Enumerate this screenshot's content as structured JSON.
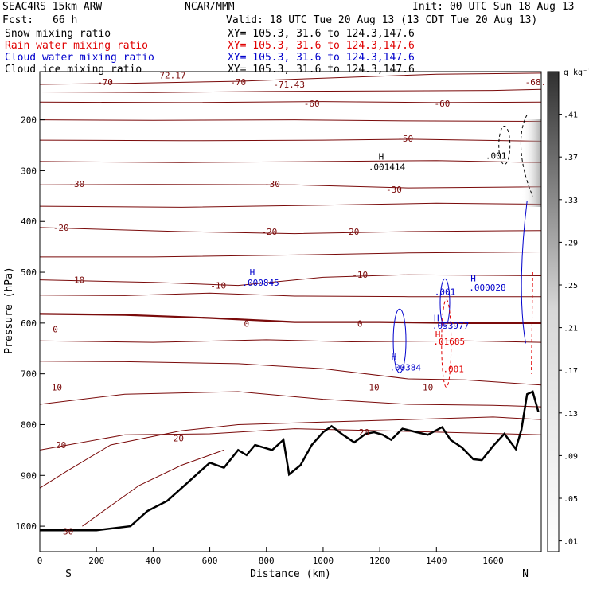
{
  "header": {
    "model": "SEAC4RS 15km ARW",
    "org": "NCAR/MMM",
    "init": "Init: 00 UTC Sun 18 Aug 13",
    "fcst_label": "Fcst:",
    "fcst_value": "66 h",
    "valid": "Valid: 18 UTC Tue 20 Aug 13 (13 CDT Tue 20 Aug 13)"
  },
  "fields": [
    {
      "name": "Snow mixing ratio",
      "xy": "XY= 105.3, 31.6 to 124.3,147.6",
      "color": "#000000"
    },
    {
      "name": "Rain water mixing ratio",
      "xy": "XY= 105.3, 31.6 to 124.3,147.6",
      "color": "#e00000"
    },
    {
      "name": "Cloud water mixing ratio",
      "xy": "XY= 105.3, 31.6 to 124.3,147.6",
      "color": "#0000cc"
    },
    {
      "name": "Cloud ice mixing ratio",
      "xy": "XY= 105.3, 31.6 to 124.3,147.6",
      "color": "#000000"
    }
  ],
  "chart_data": {
    "type": "cross-section",
    "xlabel": "Distance (km)",
    "ylabel": "Pressure (hPa)",
    "xlim": [
      0,
      1770
    ],
    "ylim": [
      1050,
      105
    ],
    "x_ticks": [
      "0",
      "200",
      "400",
      "600",
      "800",
      "1000",
      "1200",
      "1400",
      "1600"
    ],
    "x_tick_values": [
      0,
      200,
      400,
      600,
      800,
      1000,
      1200,
      1400,
      1600
    ],
    "y_ticks": [
      "200",
      "300",
      "400",
      "500",
      "600",
      "700",
      "800",
      "900",
      "1000"
    ],
    "y_tick_values": [
      200,
      300,
      400,
      500,
      600,
      700,
      800,
      900,
      1000
    ],
    "endpoint_left": "S",
    "endpoint_right": "N",
    "colorbar": {
      "unit": "g kg⁻¹",
      "labels": [
        ".01",
        ".05",
        ".09",
        ".13",
        ".17",
        ".21",
        ".25",
        ".29",
        ".33",
        ".37",
        ".41"
      ],
      "values": [
        0.01,
        0.05,
        0.09,
        0.13,
        0.17,
        0.21,
        0.25,
        0.29,
        0.33,
        0.37,
        0.41
      ]
    },
    "temperature_contours_color": "#7a0a0a",
    "terrain_color": "#000000",
    "temperature_labels": [
      {
        "text": "-70",
        "x": 230,
        "p": 125
      },
      {
        "text": "-70",
        "x": 700,
        "p": 125
      },
      {
        "text": "-72.17",
        "x": 460,
        "p": 112
      },
      {
        "text": "-71.43",
        "x": 880,
        "p": 130
      },
      {
        "text": "-68.",
        "x": 1750,
        "p": 125
      },
      {
        "text": "-60",
        "x": 960,
        "p": 168
      },
      {
        "text": "-60",
        "x": 1420,
        "p": 168
      },
      {
        "text": "-50",
        "x": 1290,
        "p": 237
      },
      {
        "text": "-30",
        "x": 130,
        "p": 326
      },
      {
        "text": "-30",
        "x": 820,
        "p": 326
      },
      {
        "text": "-30",
        "x": 1250,
        "p": 337
      },
      {
        "text": "-20",
        "x": 75,
        "p": 412
      },
      {
        "text": "-20",
        "x": 810,
        "p": 420
      },
      {
        "text": "-20",
        "x": 1100,
        "p": 420
      },
      {
        "text": "-10",
        "x": 130,
        "p": 515
      },
      {
        "text": "-10",
        "x": 630,
        "p": 526
      },
      {
        "text": "-10",
        "x": 1130,
        "p": 505
      },
      {
        "text": "0",
        "x": 55,
        "p": 612
      },
      {
        "text": "0",
        "x": 730,
        "p": 601
      },
      {
        "text": "0",
        "x": 1130,
        "p": 601
      },
      {
        "text": "10",
        "x": 60,
        "p": 726
      },
      {
        "text": "10",
        "x": 1180,
        "p": 726
      },
      {
        "text": "10",
        "x": 1370,
        "p": 726
      },
      {
        "text": "20",
        "x": 75,
        "p": 840
      },
      {
        "text": "20",
        "x": 490,
        "p": 827
      },
      {
        "text": "20",
        "x": 1145,
        "p": 815
      },
      {
        "text": "30",
        "x": 100,
        "p": 1010
      }
    ],
    "field_labels": [
      {
        "text": "H",
        "x": 1205,
        "p": 272,
        "color": "#000000"
      },
      {
        "text": ".001414",
        "x": 1225,
        "p": 292,
        "color": "#000000"
      },
      {
        "text": ".001",
        "x": 1610,
        "p": 270,
        "color": "#000000"
      },
      {
        "text": "H",
        "x": 750,
        "p": 500,
        "color": "#0000cc"
      },
      {
        "text": ".000845",
        "x": 780,
        "p": 520,
        "color": "#0000cc"
      },
      {
        "text": ".001",
        "x": 1430,
        "p": 538,
        "color": "#0000cc"
      },
      {
        "text": "H",
        "x": 1530,
        "p": 512,
        "color": "#0000cc"
      },
      {
        "text": ".000028",
        "x": 1580,
        "p": 530,
        "color": "#0000cc"
      },
      {
        "text": "H",
        "x": 1400,
        "p": 590,
        "color": "#0000cc"
      },
      {
        "text": ".053977",
        "x": 1450,
        "p": 605,
        "color": "#0000cc"
      },
      {
        "text": "H",
        "x": 1405,
        "p": 622,
        "color": "#e00000"
      },
      {
        "text": ".01685",
        "x": 1445,
        "p": 636,
        "color": "#e00000"
      },
      {
        "text": "H",
        "x": 1250,
        "p": 666,
        "color": "#0000cc"
      },
      {
        "text": ".00384",
        "x": 1290,
        "p": 687,
        "color": "#0000cc"
      },
      {
        "text": ".001",
        "x": 1460,
        "p": 690,
        "color": "#e00000"
      }
    ]
  }
}
